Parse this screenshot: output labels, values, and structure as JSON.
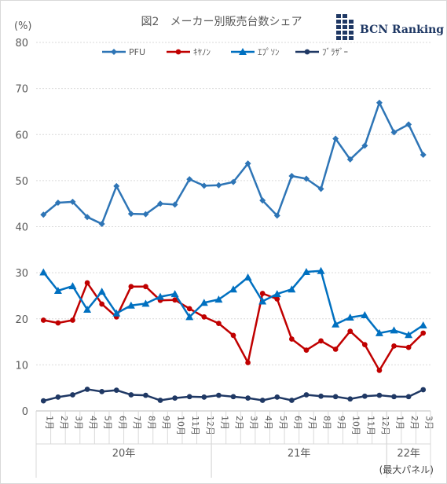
{
  "chart_data": {
    "type": "line",
    "title": "図2　メーカー別販売台数シェア",
    "ylabel": "(%)",
    "ylim": [
      0,
      80
    ],
    "yticks": [
      0,
      10,
      20,
      30,
      40,
      50,
      60,
      70,
      80
    ],
    "grid": true,
    "legend_position": "top",
    "categories": [
      "1月",
      "2月",
      "3月",
      "4月",
      "5月",
      "6月",
      "7月",
      "8月",
      "9月",
      "10月",
      "11月",
      "12月",
      "1月",
      "2月",
      "3月",
      "4月",
      "5月",
      "6月",
      "7月",
      "8月",
      "9月",
      "10月",
      "11月",
      "12月",
      "1月",
      "2月",
      "3月"
    ],
    "year_groups": [
      {
        "label": "20年",
        "start": 0,
        "end": 11
      },
      {
        "label": "21年",
        "start": 12,
        "end": 23
      },
      {
        "label": "22年",
        "start": 24,
        "end": 26
      }
    ],
    "series": [
      {
        "name": "PFU",
        "color": "#2e75b6",
        "marker": "diamond",
        "values": [
          42.6,
          45.2,
          45.4,
          42.1,
          40.6,
          48.8,
          42.8,
          42.7,
          45.0,
          44.8,
          50.3,
          48.9,
          49.0,
          49.7,
          53.7,
          45.7,
          42.4,
          51.0,
          50.4,
          48.2,
          59.1,
          54.6,
          57.6,
          66.9,
          60.5,
          62.2,
          55.6
        ]
      },
      {
        "name": "ｷﾔﾉﾝ",
        "color": "#c00000",
        "marker": "circle",
        "values": [
          19.7,
          19.1,
          19.7,
          27.8,
          23.2,
          20.4,
          27.0,
          27.0,
          24.0,
          24.1,
          22.2,
          20.4,
          19.0,
          16.4,
          10.5,
          25.5,
          24.3,
          15.6,
          13.2,
          15.2,
          13.4,
          17.3,
          14.4,
          8.8,
          14.1,
          13.8,
          16.9
        ]
      },
      {
        "name": "ｴﾌﾟｿﾝ",
        "color": "#0070c0",
        "marker": "triangle",
        "values": [
          30.1,
          26.1,
          27.1,
          22.0,
          25.9,
          21.2,
          22.9,
          23.3,
          24.8,
          25.4,
          20.4,
          23.5,
          24.2,
          26.4,
          29.0,
          23.8,
          25.4,
          26.4,
          30.2,
          30.4,
          18.8,
          20.3,
          20.8,
          16.9,
          17.5,
          16.5,
          18.6
        ]
      },
      {
        "name": "ﾌﾞﾗｻﾞｰ",
        "color": "#1f3864",
        "marker": "circle",
        "values": [
          2.2,
          3.0,
          3.5,
          4.7,
          4.2,
          4.5,
          3.5,
          3.4,
          2.3,
          2.8,
          3.1,
          3.0,
          3.4,
          3.1,
          2.8,
          2.3,
          3.0,
          2.3,
          3.5,
          3.2,
          3.1,
          2.6,
          3.2,
          3.4,
          3.1,
          3.1,
          4.6
        ]
      }
    ]
  },
  "logo": {
    "text": "BCN Ranking"
  },
  "footnote": "(最大パネル)"
}
